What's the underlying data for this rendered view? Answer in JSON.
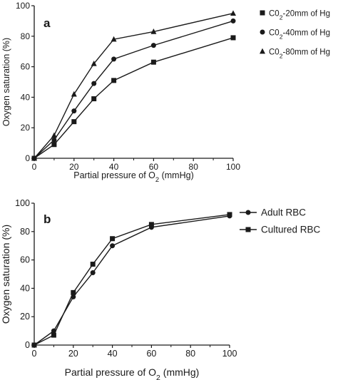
{
  "chart_data": [
    {
      "type": "line",
      "panel_label": "a",
      "xlabel_main": "Partial pressure of O",
      "xlabel_sub": "2",
      "xlabel_tail": " (mmHg)",
      "ylabel": "Oxygen saturation (%)",
      "xlim": [
        0,
        100
      ],
      "ylim": [
        0,
        100
      ],
      "xticks": [
        0,
        20,
        40,
        60,
        80,
        100
      ],
      "yticks": [
        0,
        20,
        40,
        60,
        80,
        100
      ],
      "grid": false,
      "legend_position": "right",
      "x": [
        0,
        10,
        20,
        30,
        40,
        60,
        100
      ],
      "series": [
        {
          "name": "C0",
          "name_sub": "2",
          "name_tail": "-20mm of Hg",
          "marker": "square",
          "color": "#1a1a1a",
          "values": [
            0,
            9,
            24,
            39,
            51,
            63,
            79
          ]
        },
        {
          "name": "C0",
          "name_sub": "2",
          "name_tail": "-40mm of Hg",
          "marker": "circle",
          "color": "#1a1a1a",
          "values": [
            0,
            12,
            31,
            49,
            65,
            74,
            90
          ]
        },
        {
          "name": "C0",
          "name_sub": "2",
          "name_tail": "-80mm of Hg",
          "marker": "triangle",
          "color": "#1a1a1a",
          "values": [
            0,
            15,
            42,
            62,
            78,
            83,
            95
          ]
        }
      ]
    },
    {
      "type": "line",
      "panel_label": "b",
      "xlabel_main": "Partial pressure of O",
      "xlabel_sub": "2",
      "xlabel_tail": " (mmHg)",
      "ylabel": "Oxygen saturation (%)",
      "xlim": [
        0,
        100
      ],
      "ylim": [
        0,
        100
      ],
      "xticks": [
        0,
        20,
        40,
        60,
        80,
        100
      ],
      "yticks": [
        0,
        20,
        40,
        60,
        80,
        100
      ],
      "grid": false,
      "legend_position": "right",
      "x": [
        0,
        10,
        20,
        30,
        40,
        60,
        100
      ],
      "series": [
        {
          "name": "Adult RBC",
          "name_sub": "",
          "name_tail": "",
          "marker": "circle",
          "color": "#1a1a1a",
          "values": [
            0,
            10,
            34,
            51,
            70,
            83,
            91
          ]
        },
        {
          "name": "Cultured RBC",
          "name_sub": "",
          "name_tail": "",
          "marker": "square",
          "color": "#1a1a1a",
          "values": [
            0,
            7,
            37,
            57,
            75,
            85,
            92
          ]
        }
      ]
    }
  ]
}
